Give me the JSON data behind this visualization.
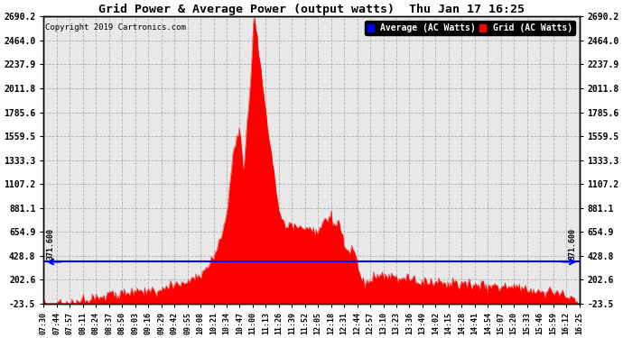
{
  "title": "Grid Power & Average Power (output watts)  Thu Jan 17 16:25",
  "copyright": "Copyright 2019 Cartronics.com",
  "legend_labels": [
    "Average (AC Watts)",
    "Grid (AC Watts)"
  ],
  "average_value": 371.6,
  "y_ticks": [
    -23.5,
    202.6,
    428.8,
    654.9,
    881.1,
    1107.2,
    1333.3,
    1559.5,
    1785.6,
    2011.8,
    2237.9,
    2464.0,
    2690.2
  ],
  "ylim": [
    -23.5,
    2690.2
  ],
  "background_color": "#e8e8e8",
  "grid_color": "#aaaaaa",
  "fill_color": "red",
  "avg_line_color": "blue",
  "x_tick_labels": [
    "07:30",
    "07:44",
    "07:57",
    "08:11",
    "08:24",
    "08:37",
    "08:50",
    "09:03",
    "09:16",
    "09:29",
    "09:42",
    "09:55",
    "10:08",
    "10:21",
    "10:34",
    "10:47",
    "11:00",
    "11:13",
    "11:26",
    "11:39",
    "11:52",
    "12:05",
    "12:18",
    "12:31",
    "12:44",
    "12:57",
    "13:10",
    "13:23",
    "13:36",
    "13:49",
    "14:02",
    "14:15",
    "14:28",
    "14:41",
    "14:54",
    "15:07",
    "15:20",
    "15:33",
    "15:46",
    "15:59",
    "16:12",
    "16:25"
  ]
}
